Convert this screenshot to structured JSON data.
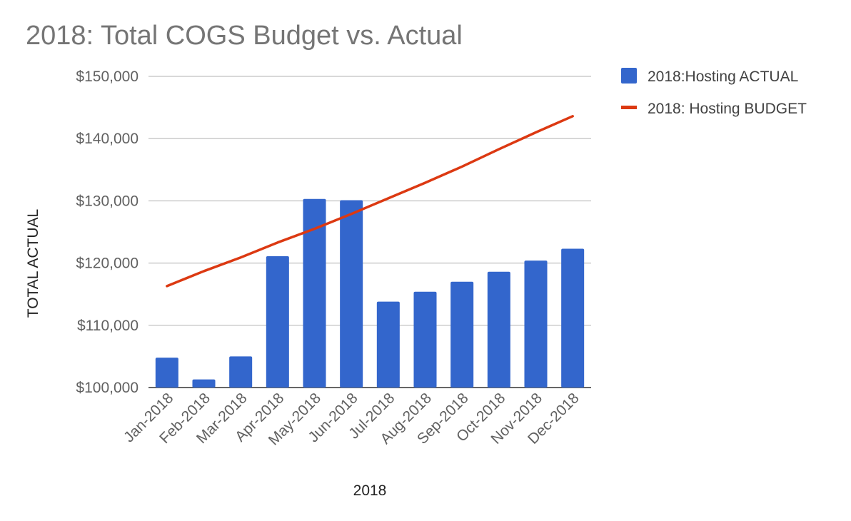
{
  "chart_data": {
    "type": "bar",
    "title": "2018: Total COGS Budget vs. Actual",
    "xlabel": "2018",
    "ylabel": "TOTAL ACTUAL",
    "ylim": [
      100000,
      150000
    ],
    "yticks": [
      100000,
      110000,
      120000,
      130000,
      140000,
      150000
    ],
    "ytick_labels": [
      "$100,000",
      "$110,000",
      "$120,000",
      "$130,000",
      "$140,000",
      "$150,000"
    ],
    "categories": [
      "Jan-2018",
      "Feb-2018",
      "Mar-2018",
      "Apr-2018",
      "May-2018",
      "Jun-2018",
      "Jul-2018",
      "Aug-2018",
      "Sep-2018",
      "Oct-2018",
      "Nov-2018",
      "Dec-2018"
    ],
    "series": [
      {
        "name": "2018:Hosting ACTUAL",
        "kind": "bar",
        "color": "#3366cc",
        "values": [
          104800,
          101300,
          105000,
          121100,
          130300,
          130100,
          113800,
          115400,
          117000,
          118600,
          120400,
          122300
        ]
      },
      {
        "name": "2018: Hosting BUDGET",
        "kind": "line",
        "color": "#dc3912",
        "values": [
          116300,
          118700,
          120900,
          123300,
          125500,
          127900,
          130400,
          132900,
          135500,
          138300,
          141000,
          143600
        ]
      }
    ],
    "grid": true,
    "legend": "right"
  }
}
